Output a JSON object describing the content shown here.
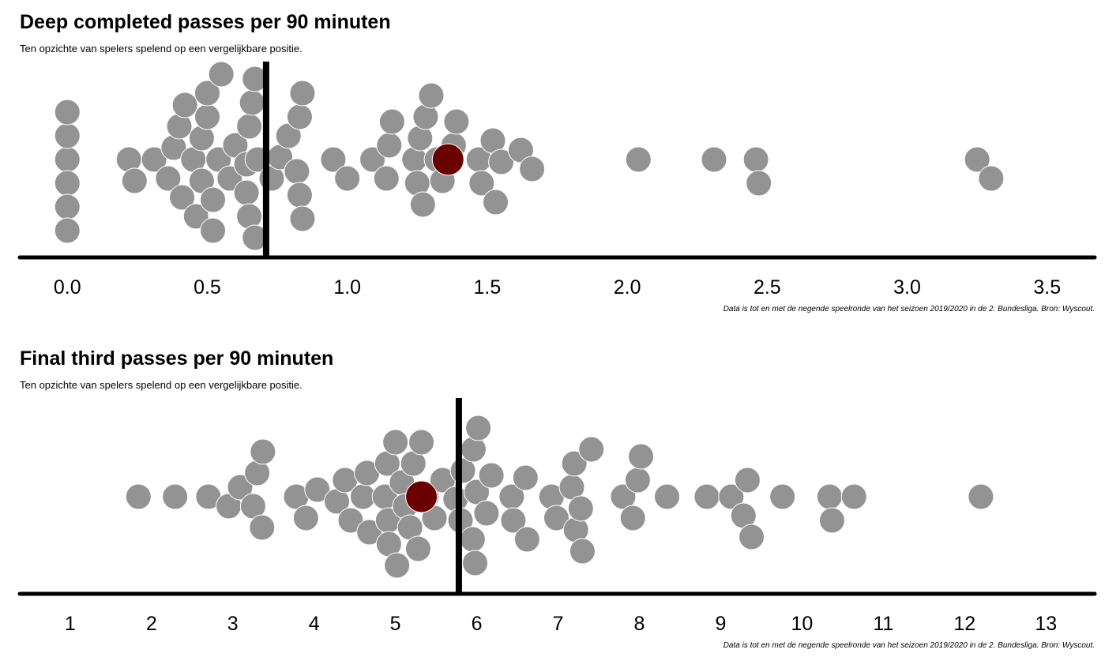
{
  "colors": {
    "point": "#939393",
    "point_stroke": "#ffffff",
    "highlight": "#6b0000",
    "axis": "#000000",
    "reference_line": "#000000"
  },
  "chart_data": [
    {
      "type": "scatter",
      "subtype": "beeswarm",
      "title": "Deep completed passes per 90 minuten",
      "subtitle": "Ten opzichte van spelers spelend op een vergelijkbare positie.",
      "caption": "Data is tot en met de negende speelronde van het seizoen 2019/2020 in de 2. Bundesliga. Bron: Wyscout.",
      "xlabel": "",
      "ylabel": "",
      "xlim": [
        -0.17,
        3.67
      ],
      "xticks": [
        0.0,
        0.5,
        1.0,
        1.5,
        2.0,
        2.5,
        3.0,
        3.5
      ],
      "xtick_labels": [
        "0.0",
        "0.5",
        "1.0",
        "1.5",
        "2.0",
        "2.5",
        "3.0",
        "3.5"
      ],
      "grid": false,
      "legend": "none",
      "reference_line_x": 0.71,
      "highlight_x": 1.36,
      "values": [
        0.0,
        0.0,
        0.0,
        0.0,
        0.0,
        0.0,
        0.22,
        0.24,
        0.31,
        0.36,
        0.38,
        0.4,
        0.41,
        0.42,
        0.45,
        0.46,
        0.48,
        0.48,
        0.5,
        0.5,
        0.52,
        0.52,
        0.54,
        0.55,
        0.58,
        0.6,
        0.64,
        0.64,
        0.65,
        0.65,
        0.66,
        0.67,
        0.67,
        0.68,
        0.73,
        0.76,
        0.79,
        0.82,
        0.83,
        0.83,
        0.84,
        0.84,
        0.95,
        1.0,
        1.09,
        1.14,
        1.15,
        1.16,
        1.24,
        1.25,
        1.26,
        1.27,
        1.28,
        1.3,
        1.32,
        1.34,
        1.38,
        1.39,
        1.47,
        1.48,
        1.52,
        1.53,
        1.55,
        1.62,
        1.66,
        2.04,
        2.31,
        2.46,
        2.47,
        3.25,
        3.3
      ]
    },
    {
      "type": "scatter",
      "subtype": "beeswarm",
      "title": "Final third passes per 90 minuten",
      "subtitle": "Ten opzichte van spelers spelend op een vergelijkbare positie.",
      "caption": "Data is tot en met de negende speelronde van het seizoen 2019/2020 in de 2. Bundesliga. Bron: Wyscout.",
      "xlabel": "",
      "ylabel": "",
      "xlim": [
        0.38,
        13.6
      ],
      "xticks": [
        1,
        2,
        3,
        4,
        5,
        6,
        7,
        8,
        9,
        10,
        11,
        12,
        13
      ],
      "xtick_labels": [
        "1",
        "2",
        "3",
        "4",
        "5",
        "6",
        "7",
        "8",
        "9",
        "10",
        "11",
        "12",
        "13"
      ],
      "grid": false,
      "legend": "none",
      "reference_line_x": 5.78,
      "highlight_x": 5.32,
      "values": [
        1.84,
        2.29,
        2.7,
        2.95,
        3.09,
        3.25,
        3.3,
        3.36,
        3.37,
        3.78,
        3.9,
        4.04,
        4.28,
        4.38,
        4.45,
        4.6,
        4.65,
        4.68,
        4.87,
        4.9,
        4.91,
        4.92,
        5.0,
        5.02,
        5.08,
        5.12,
        5.18,
        5.22,
        5.28,
        5.32,
        5.38,
        5.48,
        5.58,
        5.74,
        5.8,
        5.83,
        5.95,
        5.96,
        5.98,
        6.0,
        6.02,
        6.12,
        6.18,
        6.43,
        6.45,
        6.6,
        6.62,
        6.92,
        6.98,
        7.17,
        7.2,
        7.22,
        7.28,
        7.3,
        7.41,
        7.8,
        7.92,
        7.98,
        8.02,
        8.34,
        8.83,
        9.13,
        9.28,
        9.33,
        9.38,
        9.76,
        10.34,
        10.37,
        10.64,
        12.2
      ]
    }
  ]
}
